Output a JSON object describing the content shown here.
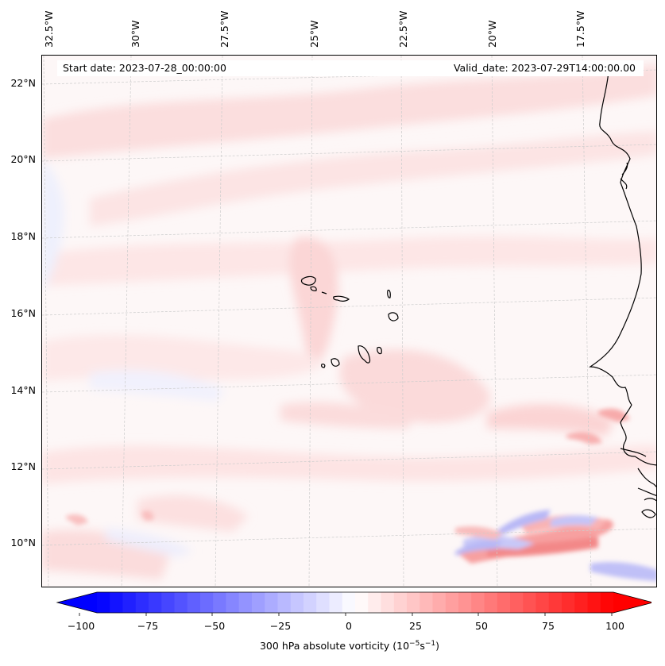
{
  "map": {
    "start_date": "Start date: 2023-07-28_00:00:00",
    "valid_date": "Valid_date: 2023-07-29T14:00:00.00",
    "lon_labels": [
      "32.5°W",
      "30°W",
      "27.5°W",
      "25°W",
      "22.5°W",
      "20°W",
      "17.5°W"
    ],
    "lat_labels": [
      "22°N",
      "20°N",
      "18°N",
      "16°N",
      "14°N",
      "12°N",
      "10°N"
    ],
    "field": "300 hPa absolute vorticity",
    "colormap": "bwr",
    "colors": {
      "min": "#0000ff",
      "zero": "#ffffff",
      "max": "#ff0000",
      "coastline": "#000000",
      "gridline": "#cccccc"
    }
  },
  "colorbar": {
    "ticks": [
      "−100",
      "−75",
      "−50",
      "−25",
      "0",
      "25",
      "50",
      "75",
      "100"
    ],
    "range": [
      -100,
      100
    ],
    "label": "300 hPa absolute vorticity (10",
    "label_exp1": "−5",
    "label_mid": "s",
    "label_exp2": "−1",
    "label_end": ")"
  }
}
